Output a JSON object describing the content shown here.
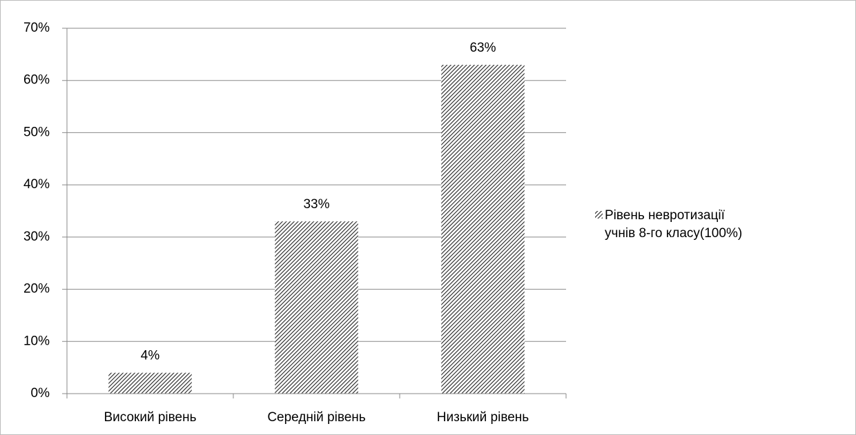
{
  "chart_data": {
    "type": "bar",
    "categories": [
      "Високий рівень",
      "Середній рівень",
      "Низький рівень"
    ],
    "series": [
      {
        "name": "Рівень невротизації учнів 8-го класу(100%)",
        "color": "#222222",
        "values": [
          4,
          33,
          63
        ],
        "value_labels": [
          "4%",
          "33%",
          "63%"
        ]
      }
    ],
    "ylim": [
      0,
      70
    ],
    "yticks": [
      {
        "value": 0,
        "label": "0%"
      },
      {
        "value": 10,
        "label": "10%"
      },
      {
        "value": 20,
        "label": "20%"
      },
      {
        "value": 30,
        "label": "30%"
      },
      {
        "value": 40,
        "label": "40%"
      },
      {
        "value": 50,
        "label": "50%"
      },
      {
        "value": 60,
        "label": "60%"
      },
      {
        "value": 70,
        "label": "70%"
      }
    ],
    "grid": true,
    "legend": "right"
  }
}
